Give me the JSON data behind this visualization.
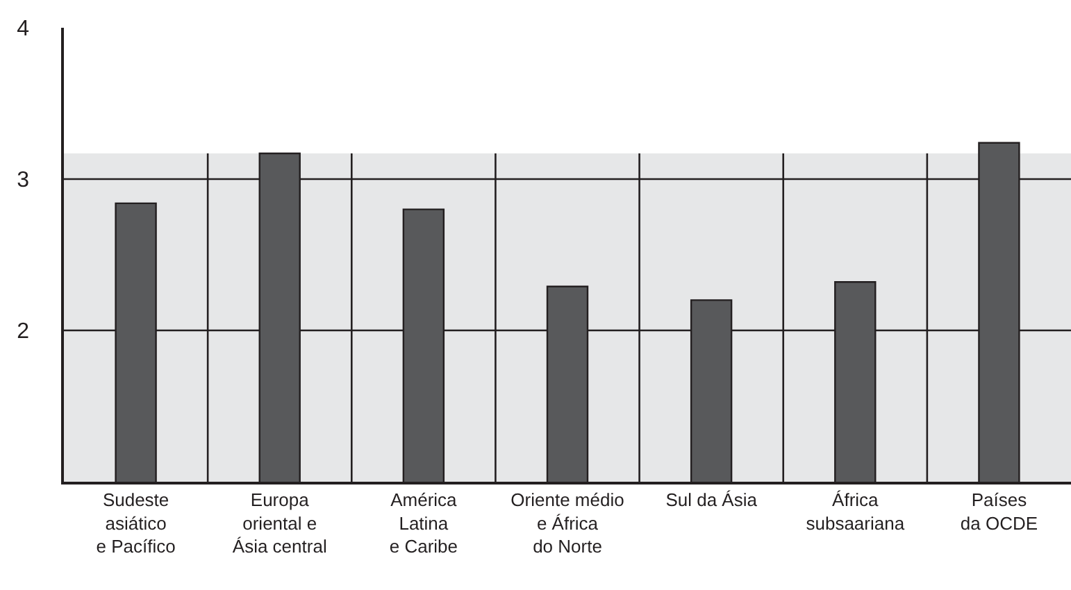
{
  "chart_data": {
    "type": "bar",
    "categories": [
      "Sudeste\nasiático\ne Pacífico",
      "Europa\noriental e\nÁsia central",
      "América\nLatina\ne Caribe",
      "Oriente médio\ne África\ndo Norte",
      "Sul da Ásia",
      "África\nsubsaariana",
      "Países\nda OCDE"
    ],
    "values": [
      2.84,
      3.17,
      2.8,
      2.29,
      2.2,
      2.32,
      3.24
    ],
    "color": "#58595b",
    "ylim": [
      1,
      4
    ],
    "yticks": [
      2,
      3,
      4
    ],
    "grid": true,
    "bands": [
      {
        "axis": "y",
        "from": 1,
        "to": 3.17,
        "color": "#e6e7e8"
      }
    ]
  }
}
